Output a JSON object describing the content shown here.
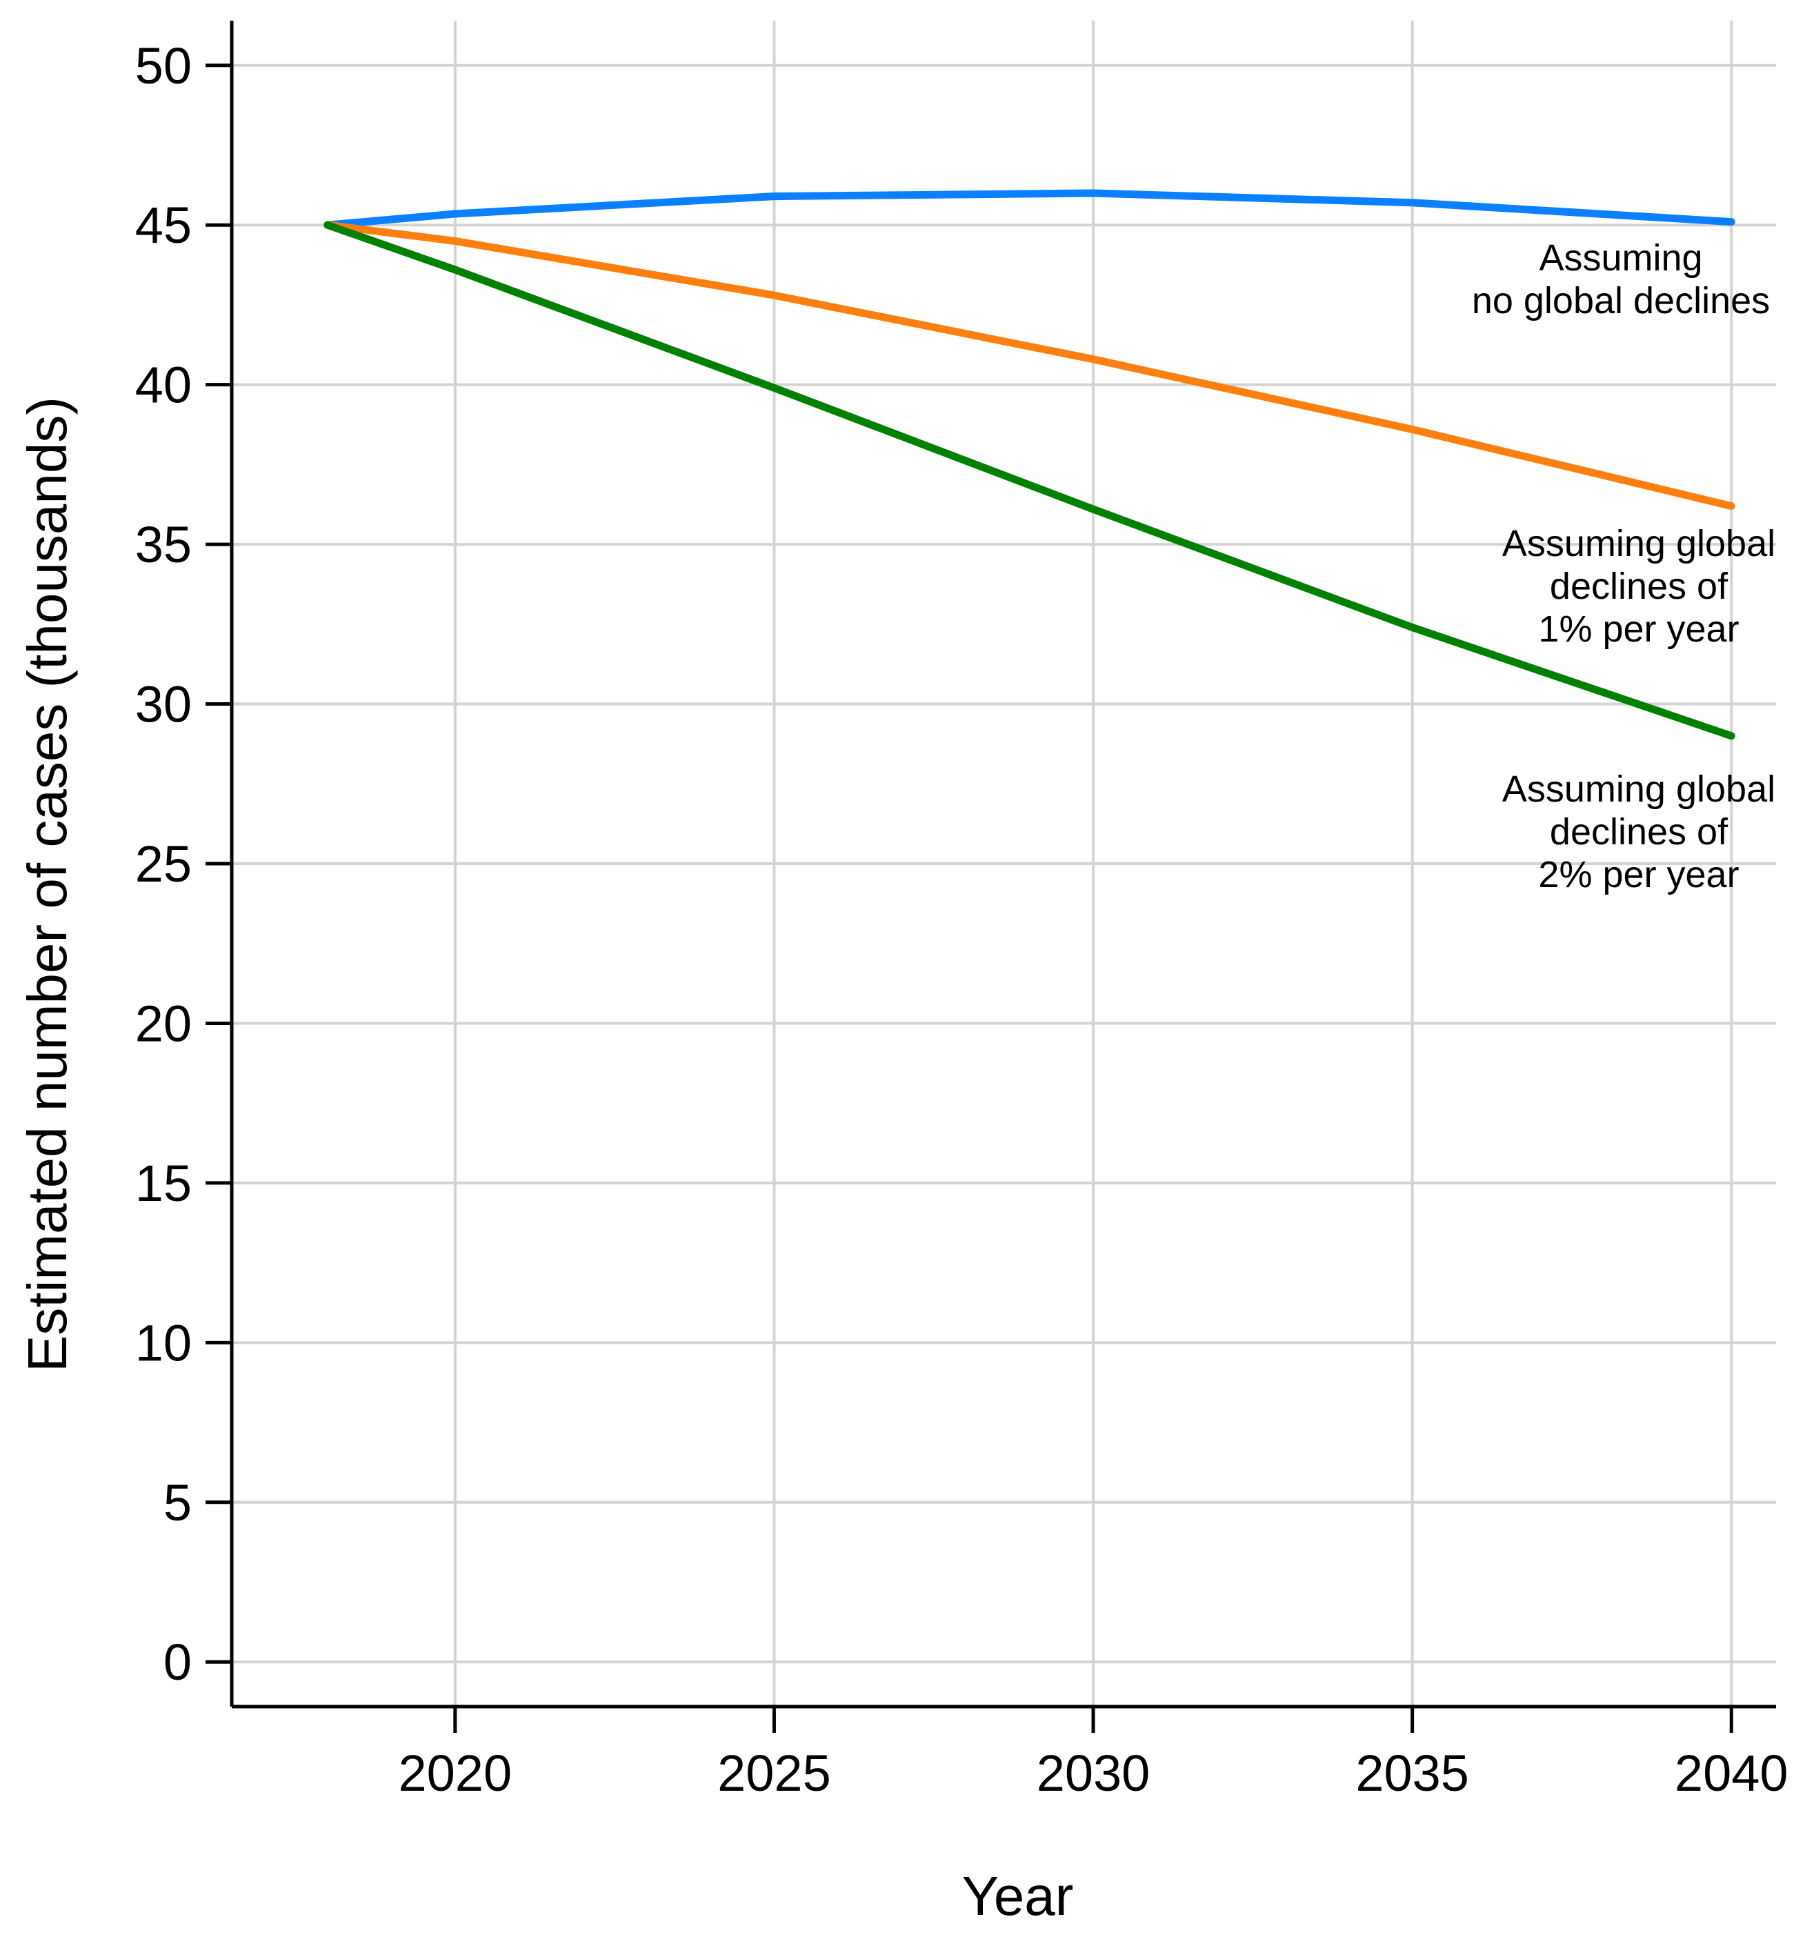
{
  "chart_data": {
    "type": "line",
    "xlabel": "Year",
    "ylabel": "Estimated number of cases (thousands)",
    "xlim": [
      2016.5,
      2040.7
    ],
    "ylim": [
      -1.4,
      51.4
    ],
    "x_ticks": [
      2020,
      2025,
      2030,
      2035,
      2040
    ],
    "y_ticks": [
      0,
      5,
      10,
      15,
      20,
      25,
      30,
      35,
      40,
      45,
      50
    ],
    "grid": true,
    "series": [
      {
        "name": "Assuming no global declines",
        "color": "#0a80ff",
        "x": [
          2018,
          2020,
          2025,
          2030,
          2035,
          2040
        ],
        "y": [
          45.0,
          45.35,
          45.9,
          46.0,
          45.7,
          45.1
        ]
      },
      {
        "name": "Assuming global declines of 1% per year",
        "color": "#ff7f0e",
        "x": [
          2018,
          2020,
          2025,
          2030,
          2035,
          2040
        ],
        "y": [
          45.0,
          44.5,
          42.8,
          40.8,
          38.6,
          36.2
        ]
      },
      {
        "name": "Assuming global declines of 2% per year",
        "color": "#008000",
        "x": [
          2018,
          2020,
          2025,
          2030,
          2035,
          2040
        ],
        "y": [
          45.0,
          43.6,
          39.9,
          36.1,
          32.4,
          29.0
        ]
      }
    ],
    "annotations": [
      {
        "lines": [
          "Assuming",
          "no global declines"
        ]
      },
      {
        "lines": [
          "Assuming global",
          "declines of",
          "1% per year"
        ]
      },
      {
        "lines": [
          "Assuming global",
          "declines of",
          "2% per year"
        ]
      }
    ]
  }
}
